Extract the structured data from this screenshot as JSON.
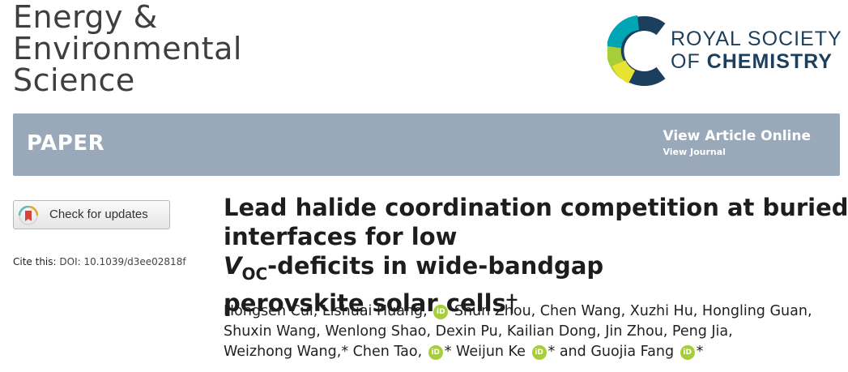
{
  "journal": {
    "line1": "Energy &",
    "line2": "Environmental",
    "line3": "Science"
  },
  "publisher": {
    "line1": "ROYAL SOCIETY",
    "line2_of": "OF",
    "line2_chem": "CHEMISTRY",
    "logo_colors": [
      "#1b3f5c",
      "#00a5b5",
      "#a6ce39",
      "#e8e230"
    ]
  },
  "banner": {
    "type": "PAPER",
    "view_article": "View Article Online",
    "view_journal": "View Journal",
    "color": "#99a9b9"
  },
  "check_updates": {
    "label": "Check for updates",
    "icon": "check-for-updates-icon"
  },
  "cite": {
    "prefix": "Cite this:",
    "doi": "DOI: 10.1039/d3ee02818f"
  },
  "article": {
    "title_line1": "Lead halide coordination competition at buried",
    "title_line2_pre": "interfaces for low",
    "title_voc_v": "V",
    "title_voc_sub": "OC",
    "title_line2_post": "-deficits in wide-bandgap",
    "title_line3": "perovskite solar cells",
    "title_dagger": "†"
  },
  "authors": {
    "line1_a": "Hongsen Cui, Lishuai Huang,",
    "line1_b": "Shun Zhou, Chen Wang, Xuzhi Hu, Hongling Guan,",
    "line2": "Shuxin Wang, Wenlong Shao, Dexin Pu, Kailian Dong, Jin Zhou, Peng Jia,",
    "line3_a": "Weizhong Wang,* Chen Tao,",
    "line3_b": "* Weijun Ke",
    "line3_c": "* and Guojia Fang",
    "line3_d": "*",
    "orcid_text": "iD"
  }
}
